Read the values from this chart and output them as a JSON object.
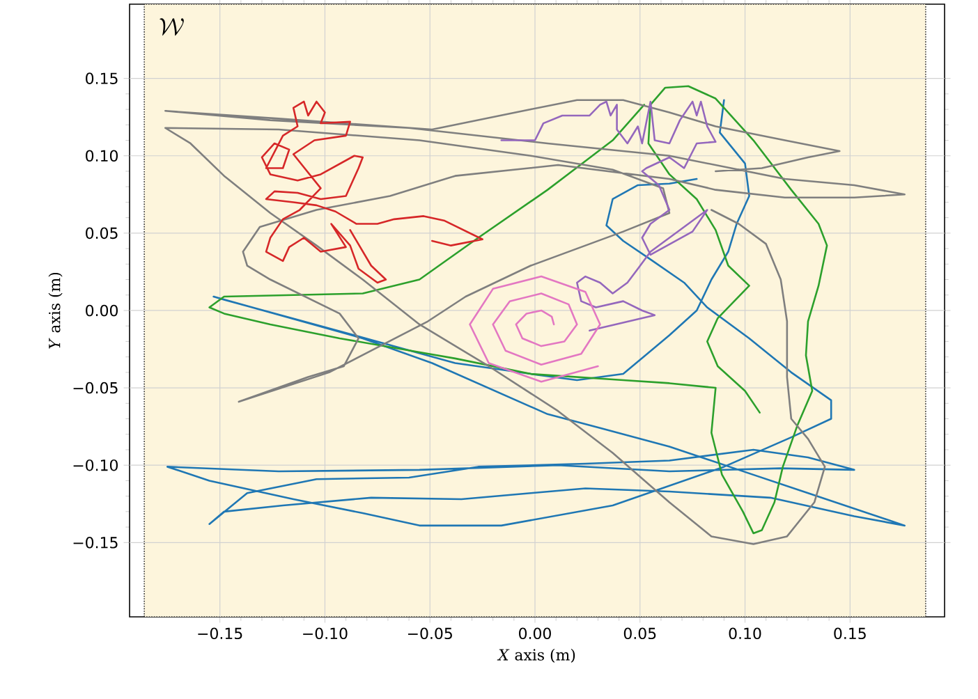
{
  "chart_data": {
    "type": "line",
    "xlabel": "*X* axis (m)",
    "ylabel": "*Y* axis (m)",
    "annotations": [
      "\\mathcal{W}"
    ],
    "xlim": [
      -0.193,
      0.195
    ],
    "ylim": [
      -0.198,
      0.198
    ],
    "xticks": [
      {
        "value": -0.15,
        "label": "−0.15"
      },
      {
        "value": -0.1,
        "label": "−0.10"
      },
      {
        "value": -0.05,
        "label": "−0.05"
      },
      {
        "value": 0,
        "label": "0.00"
      },
      {
        "value": 0.05,
        "label": "0.05"
      },
      {
        "value": 0.1,
        "label": "0.10"
      },
      {
        "value": 0.15,
        "label": "0.15"
      }
    ],
    "yticks": [
      {
        "value": -0.15,
        "label": "−0.15"
      },
      {
        "value": -0.1,
        "label": "−0.10"
      },
      {
        "value": -0.05,
        "label": "−0.05"
      },
      {
        "value": 0,
        "label": "0.00"
      },
      {
        "value": 0.05,
        "label": "0.05"
      },
      {
        "value": 0.1,
        "label": "0.10"
      },
      {
        "value": 0.15,
        "label": "0.15"
      }
    ],
    "grid": true,
    "bands": [
      {
        "axis": "x",
        "from": -0.186,
        "to": 0.186,
        "color": "#fdf5dc"
      }
    ],
    "series": [
      {
        "color": "#1f77b4",
        "x": [
          0.09,
          0.088,
          0.1,
          0.102,
          0.096,
          0.092,
          0.084,
          0.077,
          0.064,
          0.042,
          0.02,
          -0.002,
          -0.038,
          -0.086,
          -0.148,
          -0.153,
          -0.082,
          -0.049,
          0.006,
          0.031,
          0.064,
          0.097,
          0.13,
          0.176,
          0.152,
          0.112,
          0.064,
          0.024,
          -0.002,
          -0.035,
          -0.078,
          -0.12,
          -0.148,
          -0.155,
          -0.137,
          -0.104,
          -0.06,
          -0.027,
          0.024,
          0.064,
          0.104,
          0.13,
          0.152,
          0.117,
          0.064,
          0.011,
          -0.055,
          -0.122,
          -0.175,
          -0.155,
          -0.115,
          -0.082,
          -0.055,
          -0.016,
          0.037,
          0.09,
          0.122,
          0.141,
          0.141,
          0.122,
          0.102,
          0.082,
          0.071,
          0.055,
          0.042,
          0.034,
          0.037,
          0.049,
          0.064,
          0.077
        ],
        "values": [
          0.136,
          0.115,
          0.095,
          0.074,
          0.056,
          0.038,
          0.02,
          0.0,
          -0.016,
          -0.041,
          -0.045,
          -0.041,
          -0.034,
          -0.016,
          0.007,
          0.009,
          -0.018,
          -0.034,
          -0.067,
          -0.076,
          -0.088,
          -0.103,
          -0.118,
          -0.139,
          -0.133,
          -0.121,
          -0.117,
          -0.115,
          -0.118,
          -0.122,
          -0.121,
          -0.126,
          -0.13,
          -0.138,
          -0.118,
          -0.109,
          -0.108,
          -0.101,
          -0.099,
          -0.097,
          -0.09,
          -0.095,
          -0.103,
          -0.102,
          -0.104,
          -0.1,
          -0.103,
          -0.104,
          -0.101,
          -0.11,
          -0.122,
          -0.131,
          -0.139,
          -0.139,
          -0.126,
          -0.101,
          -0.082,
          -0.07,
          -0.058,
          -0.04,
          -0.018,
          0.002,
          0.018,
          0.033,
          0.045,
          0.055,
          0.072,
          0.081,
          0.082,
          0.085
        ]
      },
      {
        "color": "#2ca02c",
        "x": [
          0.107,
          0.1,
          0.087,
          0.082,
          0.087,
          0.102,
          0.092,
          0.086,
          0.077,
          0.064,
          0.054,
          0.055,
          0.062,
          0.073,
          0.086,
          0.104,
          0.122,
          0.135,
          0.139,
          0.135,
          0.13,
          0.129,
          0.132,
          0.125,
          0.118,
          0.114,
          0.108,
          0.104,
          0.099,
          0.089,
          0.084,
          0.086,
          0.064,
          0.042,
          -0.002,
          -0.038,
          -0.093,
          -0.126,
          -0.148,
          -0.155,
          -0.148,
          -0.082,
          -0.055,
          -0.027,
          0.006,
          0.037,
          0.052
        ],
        "values": [
          -0.066,
          -0.052,
          -0.036,
          -0.02,
          -0.005,
          0.016,
          0.029,
          0.052,
          0.072,
          0.088,
          0.108,
          0.133,
          0.144,
          0.145,
          0.137,
          0.11,
          0.078,
          0.056,
          0.042,
          0.016,
          -0.007,
          -0.029,
          -0.052,
          -0.074,
          -0.101,
          -0.124,
          -0.142,
          -0.144,
          -0.13,
          -0.106,
          -0.079,
          -0.05,
          -0.047,
          -0.045,
          -0.041,
          -0.031,
          -0.018,
          -0.009,
          -0.002,
          0.002,
          0.009,
          0.011,
          0.02,
          0.047,
          0.078,
          0.11,
          0.133
        ]
      },
      {
        "color": "#7f7f7f",
        "x": [
          0.086,
          0.108,
          0.13,
          0.145,
          0.119,
          0.086,
          0.064,
          0.042,
          0.02,
          -0.002,
          -0.049,
          -0.122,
          -0.176,
          -0.126,
          -0.06,
          0.006,
          0.064,
          0.119,
          0.152,
          0.176,
          0.152,
          0.119,
          0.086,
          0.064,
          0.011,
          -0.038,
          -0.069,
          -0.104,
          -0.131,
          -0.139,
          -0.137,
          -0.126,
          -0.093,
          -0.084,
          -0.091,
          -0.108,
          -0.141,
          -0.098,
          -0.051,
          -0.033,
          -0.002,
          0.042,
          0.064,
          0.061,
          0.037,
          -0.002,
          -0.055,
          -0.122,
          -0.176,
          -0.164,
          -0.148,
          -0.126,
          -0.104,
          -0.082,
          -0.055,
          -0.022,
          0.011,
          0.037,
          0.064,
          0.084,
          0.104,
          0.12,
          0.133,
          0.138,
          0.13,
          0.122,
          0.12,
          0.12,
          0.117,
          0.11,
          0.097,
          0.084
        ],
        "values": [
          0.09,
          0.092,
          0.099,
          0.103,
          0.11,
          0.119,
          0.128,
          0.136,
          0.136,
          0.13,
          0.117,
          0.124,
          0.129,
          0.123,
          0.118,
          0.108,
          0.1,
          0.085,
          0.081,
          0.075,
          0.073,
          0.073,
          0.078,
          0.085,
          0.094,
          0.087,
          0.074,
          0.065,
          0.054,
          0.038,
          0.029,
          0.02,
          -0.002,
          -0.018,
          -0.036,
          -0.043,
          -0.059,
          -0.04,
          -0.007,
          0.009,
          0.029,
          0.051,
          0.063,
          0.079,
          0.091,
          0.1,
          0.11,
          0.117,
          0.118,
          0.108,
          0.087,
          0.063,
          0.042,
          0.02,
          -0.009,
          -0.036,
          -0.065,
          -0.092,
          -0.124,
          -0.146,
          -0.151,
          -0.146,
          -0.124,
          -0.101,
          -0.083,
          -0.07,
          -0.043,
          -0.007,
          0.02,
          0.043,
          0.056,
          0.065
        ]
      },
      {
        "color": "#d62728",
        "x": [
          -0.049,
          -0.04,
          -0.025,
          -0.043,
          -0.053,
          -0.067,
          -0.075,
          -0.085,
          -0.095,
          -0.104,
          -0.115,
          -0.128,
          -0.124,
          -0.113,
          -0.102,
          -0.09,
          -0.084,
          -0.082,
          -0.086,
          -0.102,
          -0.113,
          -0.126,
          -0.13,
          -0.124,
          -0.117,
          -0.12,
          -0.128,
          -0.12,
          -0.113,
          -0.115,
          -0.11,
          -0.108,
          -0.104,
          -0.1,
          -0.102,
          -0.088,
          -0.09,
          -0.105,
          -0.115,
          -0.102,
          -0.112,
          -0.12,
          -0.126,
          -0.128,
          -0.12,
          -0.117,
          -0.11,
          -0.102,
          -0.09,
          -0.097,
          -0.088,
          -0.084,
          -0.075,
          -0.071,
          -0.078,
          -0.088
        ],
        "values": [
          0.045,
          0.042,
          0.046,
          0.058,
          0.061,
          0.059,
          0.056,
          0.056,
          0.064,
          0.068,
          0.07,
          0.072,
          0.077,
          0.076,
          0.072,
          0.074,
          0.092,
          0.099,
          0.1,
          0.088,
          0.084,
          0.088,
          0.099,
          0.108,
          0.104,
          0.092,
          0.092,
          0.113,
          0.119,
          0.131,
          0.135,
          0.126,
          0.135,
          0.128,
          0.121,
          0.122,
          0.113,
          0.11,
          0.101,
          0.079,
          0.065,
          0.059,
          0.047,
          0.038,
          0.032,
          0.041,
          0.047,
          0.038,
          0.041,
          0.056,
          0.042,
          0.027,
          0.018,
          0.02,
          0.029,
          0.052
        ]
      },
      {
        "color": "#9467bd",
        "x": [
          -0.016,
          0.0,
          0.004,
          0.013,
          0.026,
          0.031,
          0.034,
          0.036,
          0.039,
          0.039,
          0.044,
          0.049,
          0.051,
          0.055,
          0.057,
          0.064,
          0.069,
          0.075,
          0.077,
          0.079,
          0.082,
          0.086,
          0.077,
          0.071,
          0.064,
          0.053,
          0.051,
          0.059,
          0.064,
          0.055,
          0.051,
          0.055,
          0.075,
          0.082,
          0.055,
          0.049,
          0.044,
          0.037,
          0.031,
          0.024,
          0.02,
          0.022,
          0.029,
          0.042,
          0.051,
          0.057,
          0.026
        ],
        "values": [
          0.11,
          0.11,
          0.121,
          0.126,
          0.126,
          0.133,
          0.135,
          0.126,
          0.133,
          0.117,
          0.108,
          0.119,
          0.108,
          0.135,
          0.11,
          0.108,
          0.123,
          0.135,
          0.126,
          0.135,
          0.119,
          0.109,
          0.108,
          0.092,
          0.099,
          0.092,
          0.09,
          0.081,
          0.065,
          0.056,
          0.047,
          0.036,
          0.051,
          0.065,
          0.038,
          0.027,
          0.018,
          0.011,
          0.018,
          0.022,
          0.018,
          0.006,
          0.002,
          0.006,
          0.0,
          -0.003,
          -0.013
        ]
      },
      {
        "color": "#e377c2",
        "x": [
          0.009,
          0.008,
          0.003,
          -0.004,
          -0.009,
          -0.006,
          0.003,
          0.014,
          0.02,
          0.016,
          0.003,
          -0.012,
          -0.02,
          -0.014,
          0.003,
          0.022,
          0.031,
          0.024,
          0.003,
          -0.02,
          -0.031,
          -0.022,
          0.003,
          0.03
        ],
        "values": [
          -0.009,
          -0.004,
          0.0,
          -0.002,
          -0.009,
          -0.018,
          -0.023,
          -0.02,
          -0.009,
          0.004,
          0.011,
          0.006,
          -0.009,
          -0.026,
          -0.035,
          -0.028,
          -0.009,
          0.012,
          0.022,
          0.014,
          -0.009,
          -0.034,
          -0.046,
          -0.036
        ]
      }
    ]
  }
}
